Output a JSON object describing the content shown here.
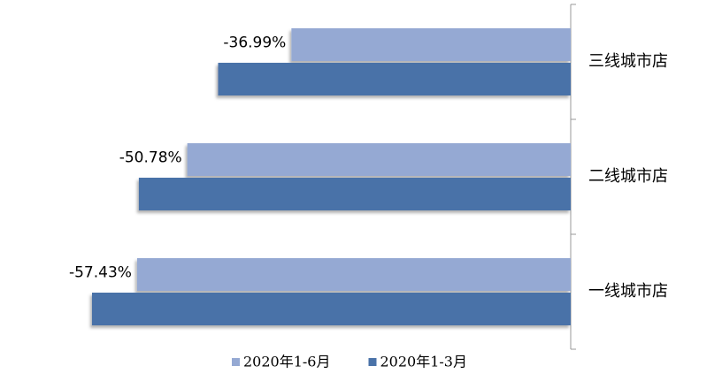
{
  "chart_data": {
    "type": "bar",
    "orientation": "horizontal",
    "categories": [
      "三线城市店",
      "二线城市店",
      "一线城市店"
    ],
    "series": [
      {
        "name": "2020年1-6月",
        "color": "#95a9d3",
        "values": [
          -36.99,
          -50.78,
          -57.43
        ],
        "value_labels": [
          "-36.99%",
          "-50.78%",
          "-57.43%"
        ]
      },
      {
        "name": "2020年1-3月",
        "color": "#4a72a8",
        "values": [
          -46.7,
          -57.2,
          -63.4
        ]
      }
    ],
    "xlim": [
      -75,
      0
    ],
    "legend": "bottom"
  }
}
